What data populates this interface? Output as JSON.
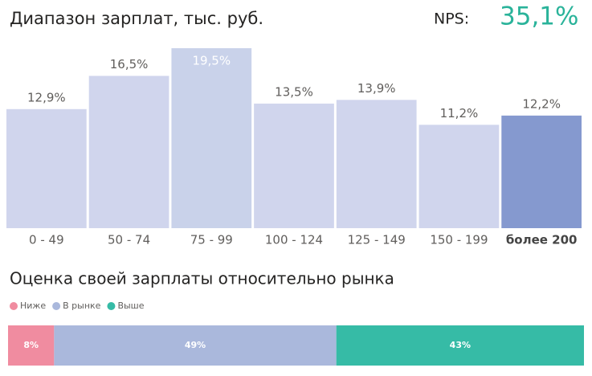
{
  "header": {
    "nps_label": "NPS:",
    "nps_value": "35,1%"
  },
  "chart_data": [
    {
      "type": "bar",
      "title": "Диапазон зарплат, тыс. руб.",
      "categories": [
        "0 - 49",
        "50 - 74",
        "75 - 99",
        "100 - 124",
        "125 - 149",
        "150 - 199",
        "более 200"
      ],
      "values": [
        12.9,
        16.5,
        19.5,
        13.5,
        13.9,
        11.2,
        12.2
      ],
      "value_labels": [
        "12,9%",
        "16,5%",
        "19,5%",
        "13,5%",
        "13,9%",
        "11,2%",
        "12,2%"
      ],
      "colors": [
        "#d0d5ed",
        "#d0d5ed",
        "#c9d2ea",
        "#d0d5ed",
        "#d0d5ed",
        "#d0d5ed",
        "#8599cf"
      ],
      "highlight": 6
    },
    {
      "type": "stacked_bar",
      "title": "Оценка своей зарплаты относительно рынка",
      "series": [
        {
          "name": "Ниже",
          "color": "#f08ca0",
          "values": [
            8
          ],
          "value_labels": [
            "8%"
          ]
        },
        {
          "name": "В рынке",
          "color": "#aab8dc",
          "values": [
            49
          ],
          "value_labels": [
            "49%"
          ]
        },
        {
          "name": "Выше",
          "color": "#36bba6",
          "values": [
            43
          ],
          "value_labels": [
            "43%"
          ]
        }
      ]
    }
  ]
}
